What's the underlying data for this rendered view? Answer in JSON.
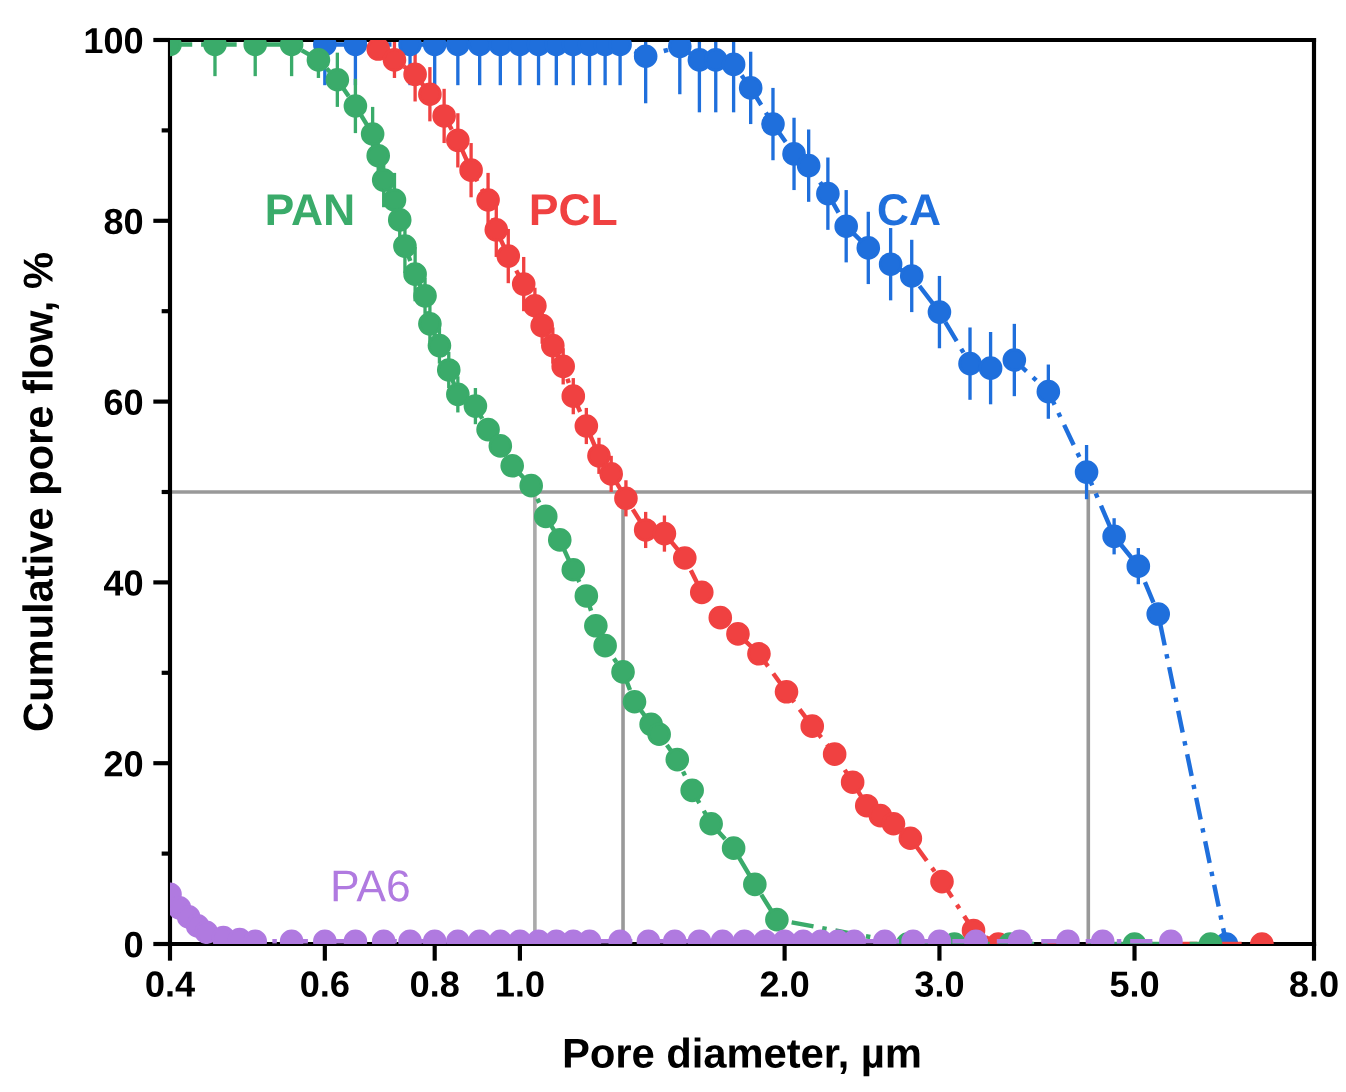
{
  "chart_data": {
    "type": "line",
    "xlabel": "Pore diameter, µm",
    "ylabel": "Cumulative pore flow, %",
    "log": "x",
    "xlim": [
      0.4,
      8.0
    ],
    "ylim": [
      0,
      100
    ],
    "xticks": [
      0.4,
      0.6,
      0.8,
      {
        "value": 1.0,
        "label": "1.0"
      },
      {
        "value": 2.0,
        "label": "2.0"
      },
      {
        "value": 3.0,
        "label": "3.0"
      },
      {
        "value": 5.0,
        "label": "5.0"
      },
      {
        "value": 8.0,
        "label": "8.0"
      }
    ],
    "yticks": [
      0,
      {
        "value": 10,
        "label": null
      },
      20,
      {
        "value": 30,
        "label": null
      },
      40,
      {
        "value": 50,
        "label": null
      },
      60,
      {
        "value": 70,
        "label": null
      },
      80,
      {
        "value": 90,
        "label": null
      },
      100
    ],
    "grid": false,
    "legend": false,
    "marker": "circle",
    "line_style": "dashed",
    "ref_lines": [
      {
        "axis": "y",
        "value": 50,
        "label": null,
        "color": "#999999"
      },
      {
        "axis": "x",
        "value": 1.04,
        "label": null,
        "color": "#aaaaaa"
      },
      {
        "axis": "x",
        "value": 1.31,
        "label": null,
        "color": "#999999"
      },
      {
        "axis": "x",
        "value": 4.43,
        "label": null,
        "color": "#999999"
      }
    ],
    "series": [
      {
        "name": "CA",
        "color": "#1f6fdc",
        "x": [
          0.6,
          0.65,
          0.75,
          0.8,
          0.85,
          0.9,
          0.95,
          1.0,
          1.05,
          1.1,
          1.15,
          1.2,
          1.25,
          1.3,
          1.39,
          1.52,
          1.6,
          1.67,
          1.75,
          1.83,
          1.94,
          2.05,
          2.13,
          2.24,
          2.35,
          2.49,
          2.64,
          2.79,
          3.0,
          3.25,
          3.43,
          3.65,
          3.99,
          4.41,
          4.74,
          5.05,
          5.32,
          6.36
        ],
        "values": [
          99.5,
          99.5,
          99.5,
          99.5,
          99.5,
          99.5,
          99.5,
          99.5,
          99.5,
          99.5,
          99.5,
          99.5,
          99.5,
          99.5,
          98.2,
          99.3,
          97.8,
          97.8,
          97.3,
          94.7,
          90.7,
          87.4,
          86.1,
          83.0,
          79.4,
          77.0,
          75.2,
          73.9,
          69.9,
          64.2,
          63.7,
          64.6,
          61.1,
          52.2,
          45.1,
          41.8,
          36.5,
          0
        ],
        "errors": [
          [
            95,
            100
          ],
          [
            95,
            100
          ],
          [
            95,
            100
          ],
          [
            95,
            100
          ],
          [
            95,
            100
          ],
          [
            95,
            100
          ],
          [
            95,
            100
          ],
          [
            95,
            100
          ],
          [
            95,
            100
          ],
          [
            95,
            100
          ],
          [
            95,
            100
          ],
          [
            95,
            100
          ],
          [
            95,
            100
          ],
          [
            95,
            100
          ],
          [
            93,
            100
          ],
          [
            94,
            100
          ],
          [
            92,
            100
          ],
          [
            92,
            100
          ],
          [
            92,
            100
          ],
          4,
          4,
          4,
          4,
          4,
          4,
          4,
          4,
          4,
          4,
          4,
          4,
          4,
          3,
          3,
          2,
          2,
          null,
          null
        ]
      },
      {
        "name": "PCL",
        "color": "#f04141",
        "x": [
          0.69,
          0.72,
          0.76,
          0.79,
          0.82,
          0.85,
          0.88,
          0.92,
          0.94,
          0.97,
          1.01,
          1.04,
          1.06,
          1.09,
          1.12,
          1.15,
          1.19,
          1.23,
          1.27,
          1.32,
          1.39,
          1.46,
          1.54,
          1.61,
          1.69,
          1.77,
          1.87,
          2.01,
          2.15,
          2.28,
          2.39,
          2.48,
          2.57,
          2.66,
          2.78,
          3.02,
          3.28,
          3.5,
          6.98
        ],
        "values": [
          99.0,
          97.8,
          96.2,
          94.0,
          91.6,
          88.9,
          85.6,
          82.3,
          79.0,
          76.1,
          73.0,
          70.6,
          68.4,
          66.2,
          63.9,
          60.6,
          57.3,
          54.0,
          52.0,
          49.3,
          45.8,
          45.4,
          42.7,
          38.9,
          36.1,
          34.3,
          32.1,
          27.9,
          24.1,
          21.0,
          17.9,
          15.3,
          14.2,
          13.3,
          11.7,
          6.9,
          1.5,
          0,
          0
        ],
        "errors": [
          null,
          2,
          3,
          3,
          3,
          3,
          3,
          3,
          3,
          3,
          3,
          2,
          2,
          2,
          2,
          2,
          2,
          2,
          2,
          2,
          2,
          2,
          null,
          null,
          null,
          null,
          null,
          null,
          null,
          null,
          null,
          null,
          null,
          null,
          null,
          null,
          null,
          null,
          null
        ]
      },
      {
        "name": "PAN",
        "color": "#3aab6a",
        "x": [
          0.4,
          0.45,
          0.5,
          0.55,
          0.59,
          0.62,
          0.65,
          0.68,
          0.69,
          0.7,
          0.72,
          0.73,
          0.74,
          0.76,
          0.78,
          0.79,
          0.81,
          0.83,
          0.85,
          0.89,
          0.92,
          0.95,
          0.98,
          1.03,
          1.07,
          1.11,
          1.15,
          1.19,
          1.22,
          1.25,
          1.31,
          1.35,
          1.41,
          1.44,
          1.51,
          1.57,
          1.65,
          1.75,
          1.85,
          1.96,
          2.76,
          3.12,
          3.61,
          5.0,
          6.1
        ],
        "values": [
          99.5,
          99.5,
          99.5,
          99.5,
          97.8,
          95.6,
          92.7,
          89.6,
          87.2,
          84.5,
          82.3,
          80.1,
          77.2,
          74.1,
          71.7,
          68.6,
          66.2,
          63.5,
          60.8,
          59.5,
          56.9,
          55.1,
          52.9,
          50.7,
          47.3,
          44.7,
          41.4,
          38.5,
          35.2,
          33.0,
          30.1,
          26.8,
          24.3,
          23.2,
          20.4,
          17.0,
          13.3,
          10.6,
          6.6,
          2.7,
          0,
          0,
          0,
          0,
          0
        ],
        "errors": [
          [
            96,
            100
          ],
          [
            96,
            100
          ],
          [
            96,
            100
          ],
          [
            96,
            100
          ],
          2,
          3,
          3,
          3,
          3,
          3,
          3,
          3,
          3,
          3,
          2,
          2,
          2,
          2,
          2,
          2,
          null,
          null,
          null,
          null,
          null,
          null,
          null,
          null,
          null,
          null,
          null,
          null,
          null,
          null,
          null,
          null,
          null,
          null,
          null,
          null,
          null,
          null,
          null,
          null,
          null
        ]
      },
      {
        "name": "PA6",
        "color": "#b07ae0",
        "x": [
          0.4,
          0.41,
          0.42,
          0.43,
          0.44,
          0.46,
          0.48,
          0.5,
          0.55,
          0.6,
          0.65,
          0.7,
          0.75,
          0.8,
          0.85,
          0.9,
          0.95,
          1.0,
          1.05,
          1.1,
          1.15,
          1.2,
          1.3,
          1.4,
          1.5,
          1.6,
          1.7,
          1.8,
          1.9,
          2.0,
          2.1,
          2.2,
          2.3,
          2.4,
          2.6,
          2.8,
          3.0,
          3.3,
          3.7,
          4.2,
          4.6,
          5.5
        ],
        "values": [
          5.5,
          4.0,
          3.0,
          2.0,
          1.3,
          0.7,
          0.5,
          0.3,
          0.3,
          0.3,
          0.3,
          0.3,
          0.3,
          0.3,
          0.3,
          0.3,
          0.3,
          0.3,
          0.3,
          0.3,
          0.3,
          0.3,
          0.3,
          0.3,
          0.3,
          0.3,
          0.3,
          0.3,
          0.3,
          0.3,
          0.3,
          0.3,
          0.3,
          0.3,
          0.3,
          0.3,
          0.3,
          0.3,
          0.3,
          0.3,
          0.3,
          0.3
        ]
      }
    ]
  }
}
